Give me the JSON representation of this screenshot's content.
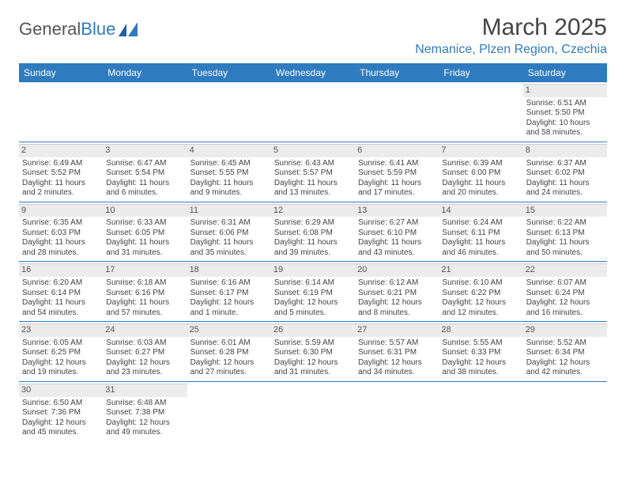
{
  "logo": {
    "text1": "General",
    "text2": "Blue"
  },
  "title": "March 2025",
  "location": "Nemanice, Plzen Region, Czechia",
  "colors": {
    "header_bg": "#2f7bbf",
    "header_text": "#ffffff",
    "accent": "#2f7bbf",
    "daynum_bg": "#ececec",
    "daynum_border": "#cfcfcf",
    "text": "#444444"
  },
  "typography": {
    "title_fontsize": 30,
    "location_fontsize": 16,
    "dayheader_fontsize": 12,
    "cell_fontsize": 10
  },
  "day_names": [
    "Sunday",
    "Monday",
    "Tuesday",
    "Wednesday",
    "Thursday",
    "Friday",
    "Saturday"
  ],
  "weeks": [
    [
      null,
      null,
      null,
      null,
      null,
      null,
      {
        "n": "1",
        "sr": "Sunrise: 6:51 AM",
        "ss": "Sunset: 5:50 PM",
        "d1": "Daylight: 10 hours",
        "d2": "and 58 minutes."
      }
    ],
    [
      {
        "n": "2",
        "sr": "Sunrise: 6:49 AM",
        "ss": "Sunset: 5:52 PM",
        "d1": "Daylight: 11 hours",
        "d2": "and 2 minutes."
      },
      {
        "n": "3",
        "sr": "Sunrise: 6:47 AM",
        "ss": "Sunset: 5:54 PM",
        "d1": "Daylight: 11 hours",
        "d2": "and 6 minutes."
      },
      {
        "n": "4",
        "sr": "Sunrise: 6:45 AM",
        "ss": "Sunset: 5:55 PM",
        "d1": "Daylight: 11 hours",
        "d2": "and 9 minutes."
      },
      {
        "n": "5",
        "sr": "Sunrise: 6:43 AM",
        "ss": "Sunset: 5:57 PM",
        "d1": "Daylight: 11 hours",
        "d2": "and 13 minutes."
      },
      {
        "n": "6",
        "sr": "Sunrise: 6:41 AM",
        "ss": "Sunset: 5:59 PM",
        "d1": "Daylight: 11 hours",
        "d2": "and 17 minutes."
      },
      {
        "n": "7",
        "sr": "Sunrise: 6:39 AM",
        "ss": "Sunset: 6:00 PM",
        "d1": "Daylight: 11 hours",
        "d2": "and 20 minutes."
      },
      {
        "n": "8",
        "sr": "Sunrise: 6:37 AM",
        "ss": "Sunset: 6:02 PM",
        "d1": "Daylight: 11 hours",
        "d2": "and 24 minutes."
      }
    ],
    [
      {
        "n": "9",
        "sr": "Sunrise: 6:35 AM",
        "ss": "Sunset: 6:03 PM",
        "d1": "Daylight: 11 hours",
        "d2": "and 28 minutes."
      },
      {
        "n": "10",
        "sr": "Sunrise: 6:33 AM",
        "ss": "Sunset: 6:05 PM",
        "d1": "Daylight: 11 hours",
        "d2": "and 31 minutes."
      },
      {
        "n": "11",
        "sr": "Sunrise: 6:31 AM",
        "ss": "Sunset: 6:06 PM",
        "d1": "Daylight: 11 hours",
        "d2": "and 35 minutes."
      },
      {
        "n": "12",
        "sr": "Sunrise: 6:29 AM",
        "ss": "Sunset: 6:08 PM",
        "d1": "Daylight: 11 hours",
        "d2": "and 39 minutes."
      },
      {
        "n": "13",
        "sr": "Sunrise: 6:27 AM",
        "ss": "Sunset: 6:10 PM",
        "d1": "Daylight: 11 hours",
        "d2": "and 43 minutes."
      },
      {
        "n": "14",
        "sr": "Sunrise: 6:24 AM",
        "ss": "Sunset: 6:11 PM",
        "d1": "Daylight: 11 hours",
        "d2": "and 46 minutes."
      },
      {
        "n": "15",
        "sr": "Sunrise: 6:22 AM",
        "ss": "Sunset: 6:13 PM",
        "d1": "Daylight: 11 hours",
        "d2": "and 50 minutes."
      }
    ],
    [
      {
        "n": "16",
        "sr": "Sunrise: 6:20 AM",
        "ss": "Sunset: 6:14 PM",
        "d1": "Daylight: 11 hours",
        "d2": "and 54 minutes."
      },
      {
        "n": "17",
        "sr": "Sunrise: 6:18 AM",
        "ss": "Sunset: 6:16 PM",
        "d1": "Daylight: 11 hours",
        "d2": "and 57 minutes."
      },
      {
        "n": "18",
        "sr": "Sunrise: 6:16 AM",
        "ss": "Sunset: 6:17 PM",
        "d1": "Daylight: 12 hours",
        "d2": "and 1 minute."
      },
      {
        "n": "19",
        "sr": "Sunrise: 6:14 AM",
        "ss": "Sunset: 6:19 PM",
        "d1": "Daylight: 12 hours",
        "d2": "and 5 minutes."
      },
      {
        "n": "20",
        "sr": "Sunrise: 6:12 AM",
        "ss": "Sunset: 6:21 PM",
        "d1": "Daylight: 12 hours",
        "d2": "and 8 minutes."
      },
      {
        "n": "21",
        "sr": "Sunrise: 6:10 AM",
        "ss": "Sunset: 6:22 PM",
        "d1": "Daylight: 12 hours",
        "d2": "and 12 minutes."
      },
      {
        "n": "22",
        "sr": "Sunrise: 6:07 AM",
        "ss": "Sunset: 6:24 PM",
        "d1": "Daylight: 12 hours",
        "d2": "and 16 minutes."
      }
    ],
    [
      {
        "n": "23",
        "sr": "Sunrise: 6:05 AM",
        "ss": "Sunset: 6:25 PM",
        "d1": "Daylight: 12 hours",
        "d2": "and 19 minutes."
      },
      {
        "n": "24",
        "sr": "Sunrise: 6:03 AM",
        "ss": "Sunset: 6:27 PM",
        "d1": "Daylight: 12 hours",
        "d2": "and 23 minutes."
      },
      {
        "n": "25",
        "sr": "Sunrise: 6:01 AM",
        "ss": "Sunset: 6:28 PM",
        "d1": "Daylight: 12 hours",
        "d2": "and 27 minutes."
      },
      {
        "n": "26",
        "sr": "Sunrise: 5:59 AM",
        "ss": "Sunset: 6:30 PM",
        "d1": "Daylight: 12 hours",
        "d2": "and 31 minutes."
      },
      {
        "n": "27",
        "sr": "Sunrise: 5:57 AM",
        "ss": "Sunset: 6:31 PM",
        "d1": "Daylight: 12 hours",
        "d2": "and 34 minutes."
      },
      {
        "n": "28",
        "sr": "Sunrise: 5:55 AM",
        "ss": "Sunset: 6:33 PM",
        "d1": "Daylight: 12 hours",
        "d2": "and 38 minutes."
      },
      {
        "n": "29",
        "sr": "Sunrise: 5:52 AM",
        "ss": "Sunset: 6:34 PM",
        "d1": "Daylight: 12 hours",
        "d2": "and 42 minutes."
      }
    ],
    [
      {
        "n": "30",
        "sr": "Sunrise: 6:50 AM",
        "ss": "Sunset: 7:36 PM",
        "d1": "Daylight: 12 hours",
        "d2": "and 45 minutes."
      },
      {
        "n": "31",
        "sr": "Sunrise: 6:48 AM",
        "ss": "Sunset: 7:38 PM",
        "d1": "Daylight: 12 hours",
        "d2": "and 49 minutes."
      },
      null,
      null,
      null,
      null,
      null
    ]
  ]
}
